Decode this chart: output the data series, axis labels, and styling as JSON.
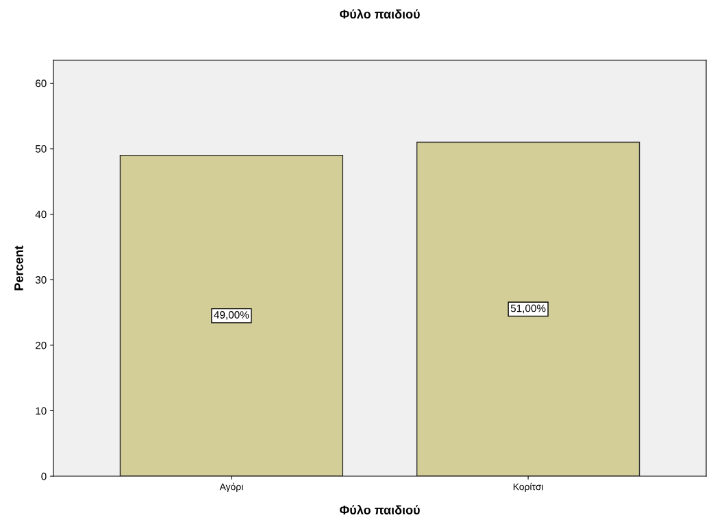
{
  "chart_data": {
    "type": "bar",
    "title": "Φύλο παιδιού",
    "xlabel": "Φύλο παιδιού",
    "ylabel": "Percent",
    "categories": [
      "Αγόρι",
      "Κορίτσι"
    ],
    "values": [
      49.0,
      51.0
    ],
    "value_labels": [
      "49,00%",
      "51,00%"
    ],
    "color": "#d3ce97",
    "ylim": [
      0,
      63.5
    ],
    "yticks": [
      0,
      10,
      20,
      30,
      40,
      50,
      60
    ],
    "grid": false,
    "legend": false
  }
}
